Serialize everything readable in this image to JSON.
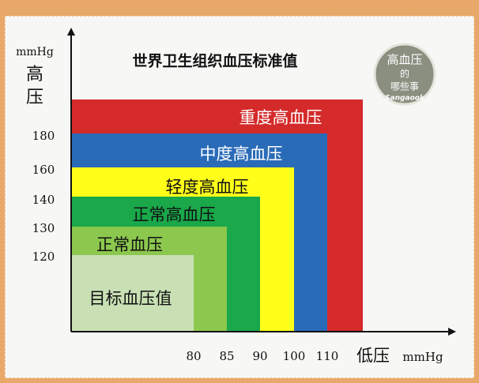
{
  "chart_data": {
    "type": "area",
    "title": "世界卫生组织血压标准值",
    "ylabel_unit": "mmHg",
    "ylabel": "高压",
    "xlabel": "低压",
    "xlabel_unit": "mmHg",
    "x_ticks": [
      80,
      85,
      90,
      100,
      110
    ],
    "y_ticks": [
      120,
      130,
      140,
      160,
      180
    ],
    "regions": [
      {
        "name": "重度高血压",
        "x_max": null,
        "y_max": null,
        "color": "#d42a2a",
        "text_color": "#ffffff"
      },
      {
        "name": "中度高血压",
        "x_max": 110,
        "y_max": 180,
        "color": "#2a6bb8",
        "text_color": "#ffffff"
      },
      {
        "name": "轻度高血压",
        "x_max": 100,
        "y_max": 160,
        "color": "#ffff1a",
        "text_color": "#111111"
      },
      {
        "name": "正常高血压",
        "x_max": 90,
        "y_max": 140,
        "color": "#1aa84a",
        "text_color": "#111111"
      },
      {
        "name": "正常血压",
        "x_max": 85,
        "y_max": 130,
        "color": "#8cc84e",
        "text_color": "#111111"
      },
      {
        "name": "目标血压值",
        "x_max": 80,
        "y_max": 120,
        "color": "#c8e0b4",
        "text_color": "#111111"
      }
    ]
  },
  "logo": {
    "line1": "高血压",
    "line2": "的",
    "line3": "哪些事",
    "brand": "Sangaook"
  }
}
